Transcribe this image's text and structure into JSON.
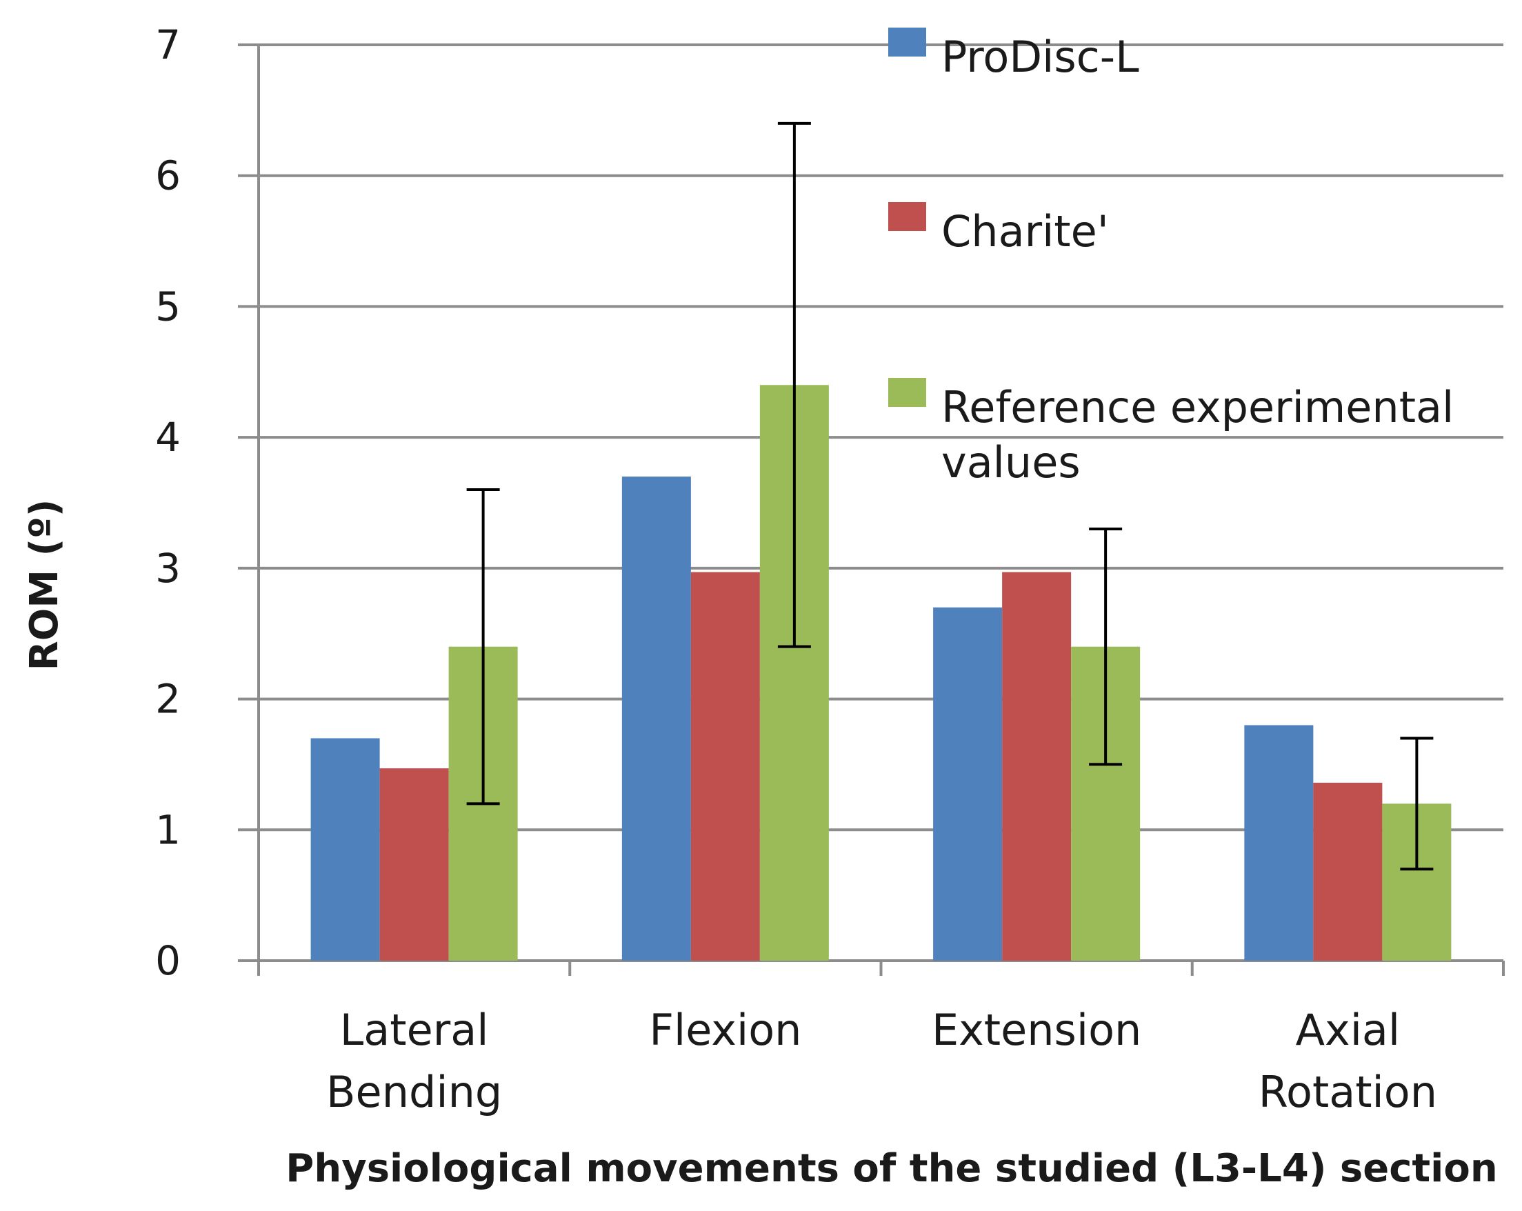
{
  "chart_data": {
    "type": "bar",
    "title": "",
    "xlabel": "Physiological movements of the studied (L3-L4) section",
    "ylabel": "ROM (º)",
    "ylim": [
      0,
      7
    ],
    "yticks": [
      0,
      1,
      2,
      3,
      4,
      5,
      6,
      7
    ],
    "grid": true,
    "legend_position": "top-right",
    "categories": [
      [
        "Lateral",
        "Bending"
      ],
      [
        "Flexion"
      ],
      [
        "Extension"
      ],
      [
        "Axial",
        "Rotation"
      ]
    ],
    "series": [
      {
        "name": "ProDisc-L",
        "legend_lines": [
          "ProDisc-L"
        ],
        "color": "#4F81BD",
        "values": [
          1.7,
          3.7,
          2.7,
          1.8
        ]
      },
      {
        "name": "Charite'",
        "legend_lines": [
          "Charite'"
        ],
        "color": "#C0504D",
        "values": [
          1.47,
          2.97,
          2.97,
          1.36
        ]
      },
      {
        "name": "Reference experimental values",
        "legend_lines": [
          "Reference experimental",
          "values"
        ],
        "color": "#9BBB59",
        "values": [
          2.4,
          4.4,
          2.4,
          1.2
        ],
        "error_low": [
          1.2,
          2.4,
          1.5,
          0.7
        ],
        "error_high": [
          3.6,
          6.4,
          3.3,
          1.7
        ]
      }
    ]
  }
}
